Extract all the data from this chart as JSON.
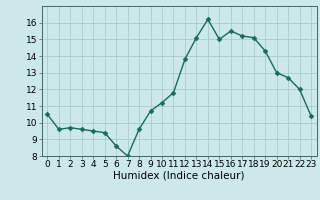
{
  "x": [
    0,
    1,
    2,
    3,
    4,
    5,
    6,
    7,
    8,
    9,
    10,
    11,
    12,
    13,
    14,
    15,
    16,
    17,
    18,
    19,
    20,
    21,
    22,
    23
  ],
  "y": [
    10.5,
    9.6,
    9.7,
    9.6,
    9.5,
    9.4,
    8.6,
    8.0,
    9.6,
    10.7,
    11.2,
    11.8,
    13.8,
    15.1,
    16.2,
    15.0,
    15.5,
    15.2,
    15.1,
    14.3,
    13.0,
    12.7,
    12.0,
    10.4
  ],
  "line_color": "#1a6b5a",
  "marker": "D",
  "marker_size": 2.5,
  "bg_color": "#cce8e8",
  "grid_color": "#a8cccc",
  "xlabel": "Humidex (Indice chaleur)",
  "ylim": [
    8,
    17
  ],
  "xlim": [
    -0.5,
    23.5
  ],
  "yticks": [
    8,
    9,
    10,
    11,
    12,
    13,
    14,
    15,
    16
  ],
  "xticks": [
    0,
    1,
    2,
    3,
    4,
    5,
    6,
    7,
    8,
    9,
    10,
    11,
    12,
    13,
    14,
    15,
    16,
    17,
    18,
    19,
    20,
    21,
    22,
    23
  ],
  "tick_label_size": 6.5,
  "xlabel_size": 7.5,
  "line_width": 1.0
}
